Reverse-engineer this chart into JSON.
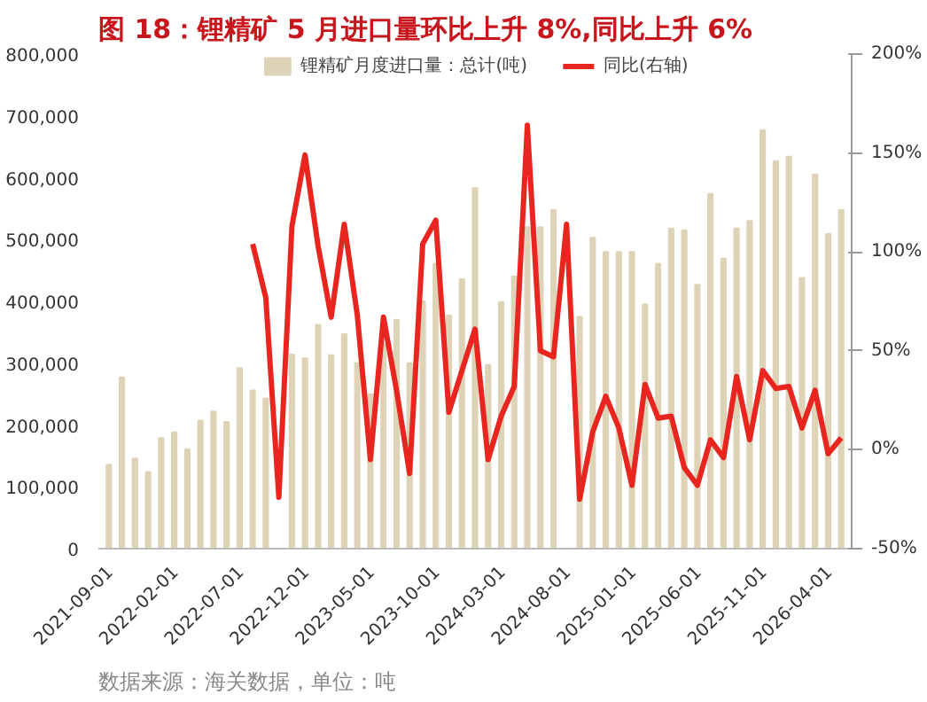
{
  "chart_data": {
    "type": "bar",
    "title": "图 18：锂精矿 5 月进口量环比上升 8%,同比上升 6%",
    "annotations": [
      "数据来源：海关数据，单位：吨"
    ],
    "categories": [
      "2021-09-01",
      null,
      null,
      null,
      null,
      "2022-02-01",
      null,
      null,
      null,
      null,
      "2022-07-01",
      null,
      null,
      null,
      null,
      "2022-12-01",
      null,
      null,
      null,
      null,
      "2023-05-01",
      null,
      null,
      null,
      null,
      "2023-10-01",
      null,
      null,
      null,
      null,
      "2024-03-01",
      null,
      null,
      null,
      null,
      "2024-08-01",
      null,
      null,
      null,
      null,
      "2025-01-01",
      null,
      null,
      null,
      null,
      "2025-06-01",
      null,
      null,
      null,
      null,
      "2025-11-01",
      null,
      null,
      null,
      null,
      "2026-04-01",
      null
    ],
    "series": [
      {
        "name": "锂精矿月度进口量：总计(吨)",
        "color": "#ded3b7",
        "values": [
          136000,
          277000,
          146000,
          124000,
          179000,
          188000,
          161000,
          207000,
          222000,
          205000,
          292000,
          256000,
          243000,
          null,
          314000,
          308000,
          362000,
          313000,
          347000,
          300000,
          250000,
          330000,
          370000,
          300000,
          400000,
          461000,
          377000,
          436000,
          583000,
          297000,
          399000,
          440000,
          520000,
          520000,
          548000,
          null,
          375000,
          503000,
          480000,
          480000,
          480000,
          395000,
          461000,
          518000,
          515000,
          427000,
          574000,
          469000,
          518000,
          530000,
          677000,
          627000,
          634000,
          438000,
          605000,
          509000,
          548000
        ]
      },
      {
        "name": "同比(右轴)",
        "type": "line",
        "axis": "y2",
        "color": "#e8251f",
        "values": [
          null,
          null,
          null,
          null,
          null,
          null,
          null,
          null,
          null,
          null,
          null,
          104,
          77,
          -24,
          113,
          149,
          103,
          67,
          114,
          68,
          -5,
          67,
          30,
          -12,
          104,
          116,
          19,
          40,
          61,
          -5,
          17,
          32,
          164,
          50,
          47,
          114,
          -25,
          9,
          27,
          11,
          -18,
          33,
          16,
          17,
          -9,
          -18,
          5,
          -4,
          37,
          5,
          40,
          31,
          32,
          11,
          30,
          -2,
          6
        ]
      }
    ],
    "ylim": [
      0,
      800000
    ],
    "yticks": [
      {
        "value": 0,
        "label": "0"
      },
      {
        "value": 100000,
        "label": "100,000"
      },
      {
        "value": 200000,
        "label": "200,000"
      },
      {
        "value": 300000,
        "label": "300,000"
      },
      {
        "value": 400000,
        "label": "400,000"
      },
      {
        "value": 500000,
        "label": "500,000"
      },
      {
        "value": 600000,
        "label": "600,000"
      },
      {
        "value": 700000,
        "label": "700,000"
      },
      {
        "value": 800000,
        "label": "800,000"
      }
    ],
    "y2lim": [
      -50,
      200
    ],
    "y2ticks": [
      {
        "value": -50,
        "label": "-50%"
      },
      {
        "value": 0,
        "label": "0%"
      },
      {
        "value": 50,
        "label": "50%"
      },
      {
        "value": 100,
        "label": "100%"
      },
      {
        "value": 150,
        "label": "150%"
      },
      {
        "value": 200,
        "label": "200%"
      }
    ],
    "legend": "top",
    "grid": false
  }
}
